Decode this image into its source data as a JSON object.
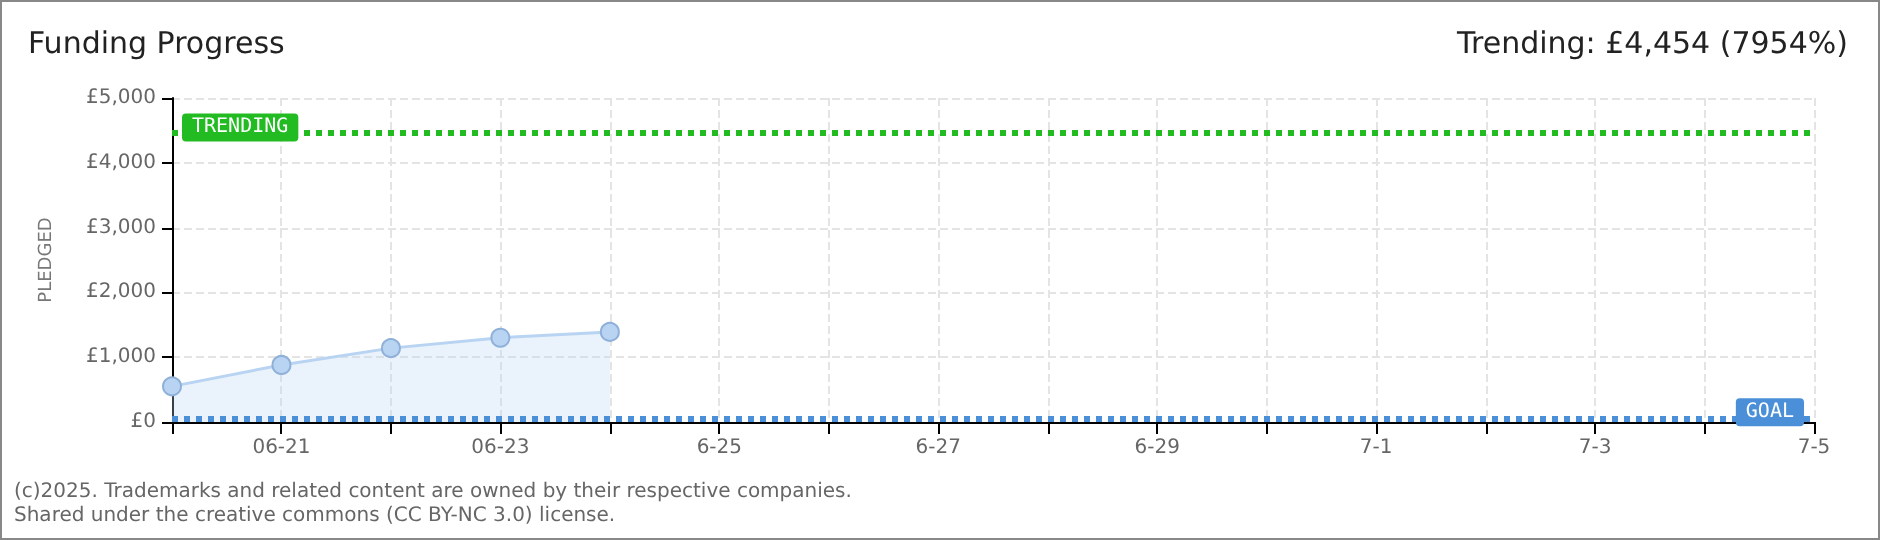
{
  "chart_data": {
    "type": "area",
    "title": "Funding Progress",
    "subtitle": "Trending: £4,454 (7954%)",
    "ylabel": "PLEDGED",
    "x": [
      "--06-20",
      "--06-21",
      "--06-22",
      "--06-23",
      "--06-24"
    ],
    "series": [
      {
        "color": "#b8d4f2",
        "values": [
          550,
          880,
          1140,
          1300,
          1390
        ]
      }
    ],
    "marker": "circle",
    "grid": true,
    "xlim": [
      "--06-20",
      "--07-05"
    ],
    "xticks": [
      {
        "value": "--06-20",
        "label": null
      },
      {
        "value": "--06-21",
        "label": "06-21"
      },
      {
        "value": "--06-22",
        "label": null
      },
      {
        "value": "--06-23",
        "label": "06-23"
      },
      {
        "value": "--06-24",
        "label": null
      },
      {
        "value": "--06-25",
        "label": "6-25"
      },
      {
        "value": "--06-26",
        "label": null
      },
      {
        "value": "--06-27",
        "label": "6-27"
      },
      {
        "value": "--06-28",
        "label": null
      },
      {
        "value": "--06-29",
        "label": "6-29"
      },
      {
        "value": "--06-30",
        "label": null
      },
      {
        "value": "--07-01",
        "label": "7-1"
      },
      {
        "value": "--07-02",
        "label": null
      },
      {
        "value": "--07-03",
        "label": "7-3"
      },
      {
        "value": "--07-04",
        "label": null
      },
      {
        "value": "--07-05",
        "label": "7-5"
      }
    ],
    "ylim": [
      0,
      5000
    ],
    "yticks": [
      {
        "value": 0,
        "label": "£0"
      },
      {
        "value": 1000,
        "label": "£1,000"
      },
      {
        "value": 2000,
        "label": "£2,000"
      },
      {
        "value": 3000,
        "label": "£3,000"
      },
      {
        "value": 4000,
        "label": "£4,000"
      },
      {
        "value": 5000,
        "label": "£5,000"
      }
    ],
    "ref_lines": [
      {
        "axis": "y",
        "value": 4454,
        "label": "TRENDING",
        "color": "#22bb22",
        "line_style": "dotted"
      },
      {
        "axis": "y",
        "value": 56,
        "label": "GOAL",
        "color": "#4a8fd8",
        "line_style": "dotted"
      }
    ],
    "annotations": [
      "(c)2025. Trademarks and related content are owned by their respective companies.",
      "Shared under the creative commons (CC BY-NC 3.0) license."
    ]
  }
}
